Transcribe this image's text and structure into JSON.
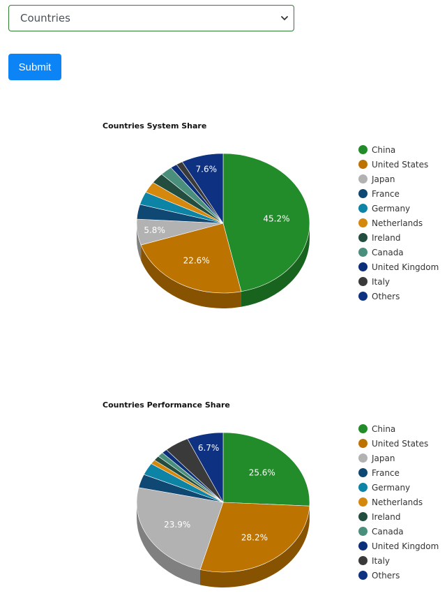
{
  "form": {
    "select_value": "Countries",
    "submit_label": "Submit"
  },
  "colors": {
    "China": "#228b2a",
    "United States": "#bd7300",
    "Japan": "#b2b2b2",
    "France": "#0f4872",
    "Germany": "#0d83a6",
    "Netherlands": "#d5880e",
    "Ireland": "#234d3f",
    "Canada": "#4a8f7b",
    "United Kingdom": "#0d2f7a",
    "Italy": "#3a3a3a",
    "Others": "#0f3182"
  },
  "chart_data": [
    {
      "type": "pie",
      "title": "Countries System Share",
      "legend_position": "right",
      "categories": [
        "China",
        "United States",
        "Japan",
        "France",
        "Germany",
        "Netherlands",
        "Ireland",
        "Canada",
        "United Kingdom",
        "Italy",
        "Others"
      ],
      "values": [
        45.2,
        22.6,
        5.8,
        3.3,
        2.9,
        2.5,
        2.4,
        2.2,
        1.2,
        1.2,
        7.6
      ],
      "data_labels": [
        "45.2%",
        "22.6%",
        "5.8%",
        "",
        "",
        "",
        "",
        "",
        "",
        "",
        "7.6%"
      ]
    },
    {
      "type": "pie",
      "title": "Countries Performance Share",
      "legend_position": "right",
      "categories": [
        "China",
        "United States",
        "Japan",
        "France",
        "Germany",
        "Netherlands",
        "Ireland",
        "Canada",
        "United Kingdom",
        "Italy",
        "Others"
      ],
      "values": [
        25.6,
        28.2,
        23.9,
        3.1,
        2.8,
        1.0,
        1.1,
        1.1,
        1.0,
        4.6,
        6.7
      ],
      "data_labels": [
        "25.6%",
        "28.2%",
        "23.9%",
        "",
        "",
        "",
        "",
        "",
        "",
        "",
        "6.7%"
      ]
    }
  ]
}
